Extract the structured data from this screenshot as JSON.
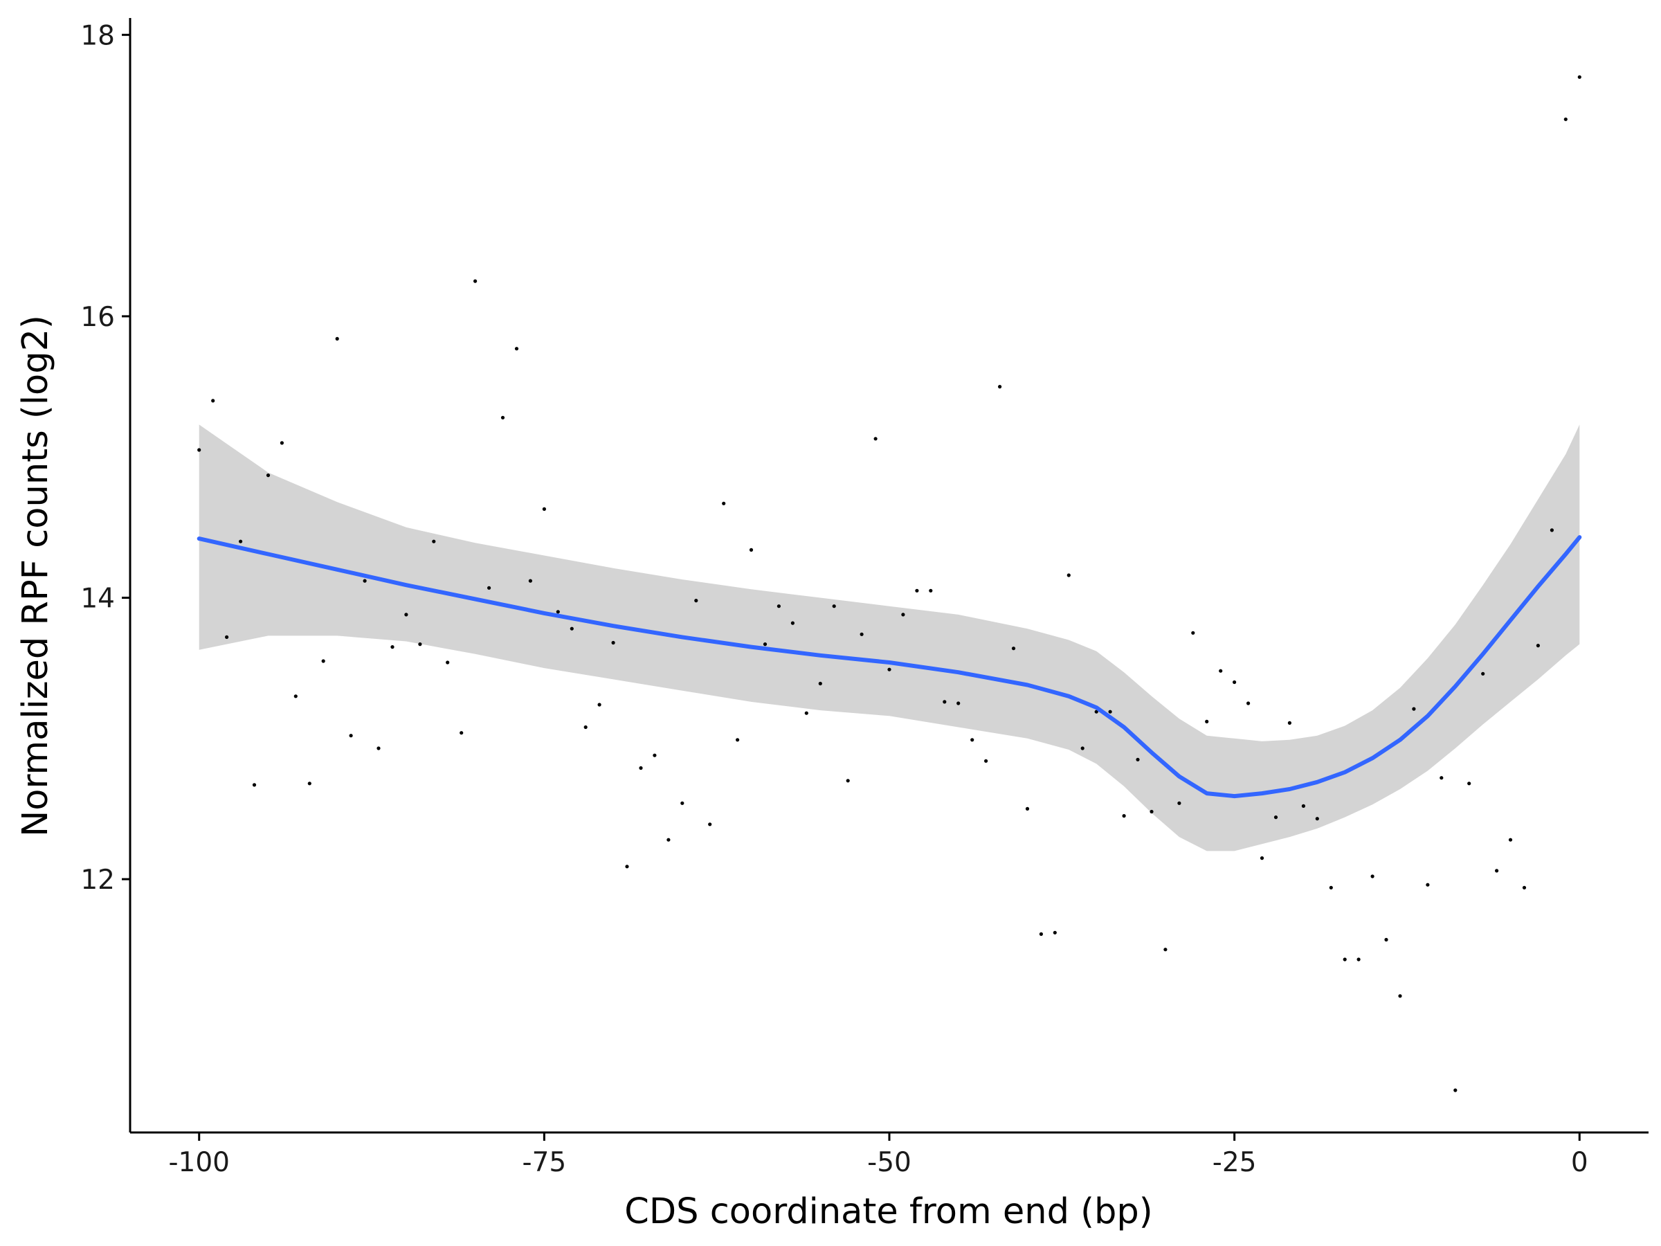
{
  "chart_data": {
    "type": "scatter",
    "title": "",
    "xlabel": "CDS coordinate from end (bp)",
    "ylabel": "Normalized RPF counts (log2)",
    "xlim": [
      -105,
      5
    ],
    "ylim": [
      10.2,
      18.1
    ],
    "x_ticks": [
      -100,
      -75,
      -50,
      -25,
      0
    ],
    "x_tick_labels": [
      "-100",
      "-75",
      "-50",
      "-25",
      "0"
    ],
    "y_ticks": [
      12,
      14,
      16,
      18
    ],
    "y_tick_labels": [
      "12",
      "14",
      "16",
      "18"
    ],
    "grid": false,
    "legend": "none",
    "colors": {
      "points": "#000000",
      "smooth_line": "#3366FF",
      "confidence_band": "#D4D4D4",
      "axes": "#000000"
    },
    "points": {
      "x": [
        -100,
        -99,
        -98,
        -97,
        -96,
        -95,
        -94,
        -93,
        -92,
        -91,
        -90,
        -89,
        -88,
        -87,
        -86,
        -85,
        -84,
        -83,
        -82,
        -81,
        -80,
        -79,
        -78,
        -77,
        -76,
        -75,
        -74,
        -73,
        -72,
        -71,
        -70,
        -69,
        -68,
        -67,
        -66,
        -65,
        -64,
        -63,
        -62,
        -61,
        -60,
        -59,
        -58,
        -57,
        -56,
        -55,
        -54,
        -53,
        -52,
        -51,
        -50,
        -49,
        -48,
        -47,
        -46,
        -45,
        -44,
        -43,
        -42,
        -41,
        -40,
        -39,
        -38,
        -37,
        -36,
        -35,
        -34,
        -33,
        -32,
        -31,
        -30,
        -29,
        -28,
        -27,
        -26,
        -25,
        -24,
        -23,
        -22,
        -21,
        -20,
        -19,
        -18,
        -17,
        -16,
        -15,
        -14,
        -13,
        -12,
        -11,
        -10,
        -9,
        -8,
        -7,
        -6,
        -5,
        -4,
        -3,
        -2,
        -1,
        0
      ],
      "y": [
        15.05,
        15.4,
        13.72,
        14.4,
        12.67,
        14.87,
        15.1,
        13.3,
        12.68,
        13.55,
        15.84,
        13.02,
        14.12,
        12.93,
        13.65,
        13.88,
        13.67,
        14.4,
        13.54,
        13.04,
        16.25,
        14.07,
        15.28,
        15.77,
        14.12,
        14.63,
        13.9,
        13.78,
        13.08,
        13.24,
        13.68,
        12.09,
        12.79,
        12.88,
        12.28,
        12.54,
        13.98,
        12.39,
        14.67,
        12.99,
        14.34,
        13.67,
        13.94,
        13.82,
        13.18,
        13.39,
        13.94,
        12.7,
        13.74,
        15.13,
        13.49,
        13.88,
        14.05,
        14.05,
        13.26,
        13.25,
        12.99,
        12.84,
        15.5,
        13.64,
        12.5,
        11.61,
        11.62,
        14.16,
        12.93,
        13.19,
        13.19,
        12.45,
        12.85,
        12.48,
        11.5,
        12.54,
        13.75,
        13.12,
        13.48,
        13.4,
        13.25,
        12.15,
        12.44,
        13.11,
        12.52,
        12.43,
        11.94,
        11.43,
        11.43,
        12.02,
        11.57,
        11.17,
        13.21,
        11.96,
        12.72,
        10.5,
        12.68,
        13.46,
        12.06,
        12.28,
        11.94,
        13.66,
        14.48,
        17.4,
        17.7
      ]
    },
    "smooth": {
      "x": [
        -100,
        -95,
        -90,
        -85,
        -80,
        -75,
        -70,
        -65,
        -60,
        -55,
        -50,
        -45,
        -40,
        -37,
        -35,
        -33,
        -31,
        -29,
        -27,
        -25,
        -23,
        -21,
        -19,
        -17,
        -15,
        -13,
        -11,
        -9,
        -7,
        -5,
        -3,
        -1,
        0
      ],
      "y": [
        14.42,
        14.31,
        14.2,
        14.09,
        13.99,
        13.89,
        13.8,
        13.72,
        13.65,
        13.59,
        13.54,
        13.47,
        13.38,
        13.3,
        13.22,
        13.08,
        12.9,
        12.73,
        12.61,
        12.59,
        12.61,
        12.64,
        12.69,
        12.76,
        12.86,
        12.99,
        13.16,
        13.37,
        13.6,
        13.84,
        14.08,
        14.31,
        14.43
      ],
      "lower": [
        13.63,
        13.73,
        13.73,
        13.69,
        13.6,
        13.5,
        13.42,
        13.34,
        13.26,
        13.2,
        13.16,
        13.08,
        13.0,
        12.92,
        12.82,
        12.66,
        12.47,
        12.3,
        12.2,
        12.2,
        12.25,
        12.3,
        12.36,
        12.44,
        12.53,
        12.64,
        12.77,
        12.93,
        13.1,
        13.26,
        13.42,
        13.59,
        13.67
      ],
      "upper": [
        15.23,
        14.89,
        14.68,
        14.5,
        14.39,
        14.3,
        14.21,
        14.13,
        14.06,
        14.0,
        13.94,
        13.88,
        13.78,
        13.7,
        13.62,
        13.47,
        13.3,
        13.14,
        13.02,
        13.0,
        12.98,
        12.99,
        13.02,
        13.09,
        13.2,
        13.36,
        13.57,
        13.81,
        14.09,
        14.38,
        14.7,
        15.02,
        15.23
      ]
    }
  }
}
